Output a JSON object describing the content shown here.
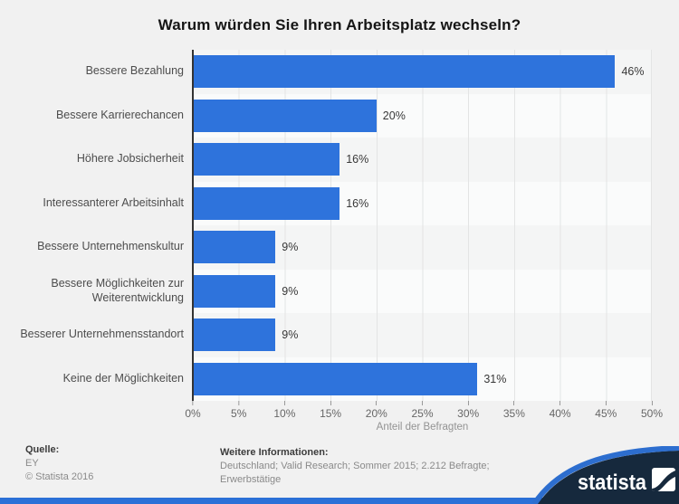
{
  "title": "Warum würden Sie Ihren Arbeitsplatz wechseln?",
  "chart_data": {
    "type": "bar",
    "orientation": "horizontal",
    "categories": [
      "Bessere Bezahlung",
      "Bessere Karrierechancen",
      "Höhere Jobsicherheit",
      "Interessanterer Arbeitsinhalt",
      "Bessere Unternehmenskultur",
      "Bessere Möglichkeiten zur Weiterentwicklung",
      "Besserer Unternehmensstandort",
      "Keine der Möglichkeiten"
    ],
    "values": [
      46,
      20,
      16,
      16,
      9,
      9,
      9,
      31
    ],
    "value_labels": [
      "46%",
      "20%",
      "16%",
      "16%",
      "9%",
      "9%",
      "9%",
      "31%"
    ],
    "title": "Warum würden Sie Ihren Arbeitsplatz wechseln?",
    "xlabel": "Anteil der Befragten",
    "ylabel": "",
    "xlim": [
      0,
      50
    ],
    "tick_labels": [
      "0%",
      "5%",
      "10%",
      "15%",
      "20%",
      "25%",
      "30%",
      "35%",
      "40%",
      "45%",
      "50%"
    ],
    "grid": true,
    "legend": false,
    "bar_color": "#2e73dc"
  },
  "footer": {
    "source_label": "Quelle:",
    "source": "EY",
    "copyright": "© Statista 2016",
    "info_label": "Weitere Informationen:",
    "info_line1": "Deutschland; Valid Research; Sommer 2015; 2.212 Befragte;",
    "info_line2": "Erwerbstätige"
  },
  "branding": {
    "logo_text": "statista",
    "navy": "#16293d",
    "accent_blue": "#2d6ecf"
  }
}
